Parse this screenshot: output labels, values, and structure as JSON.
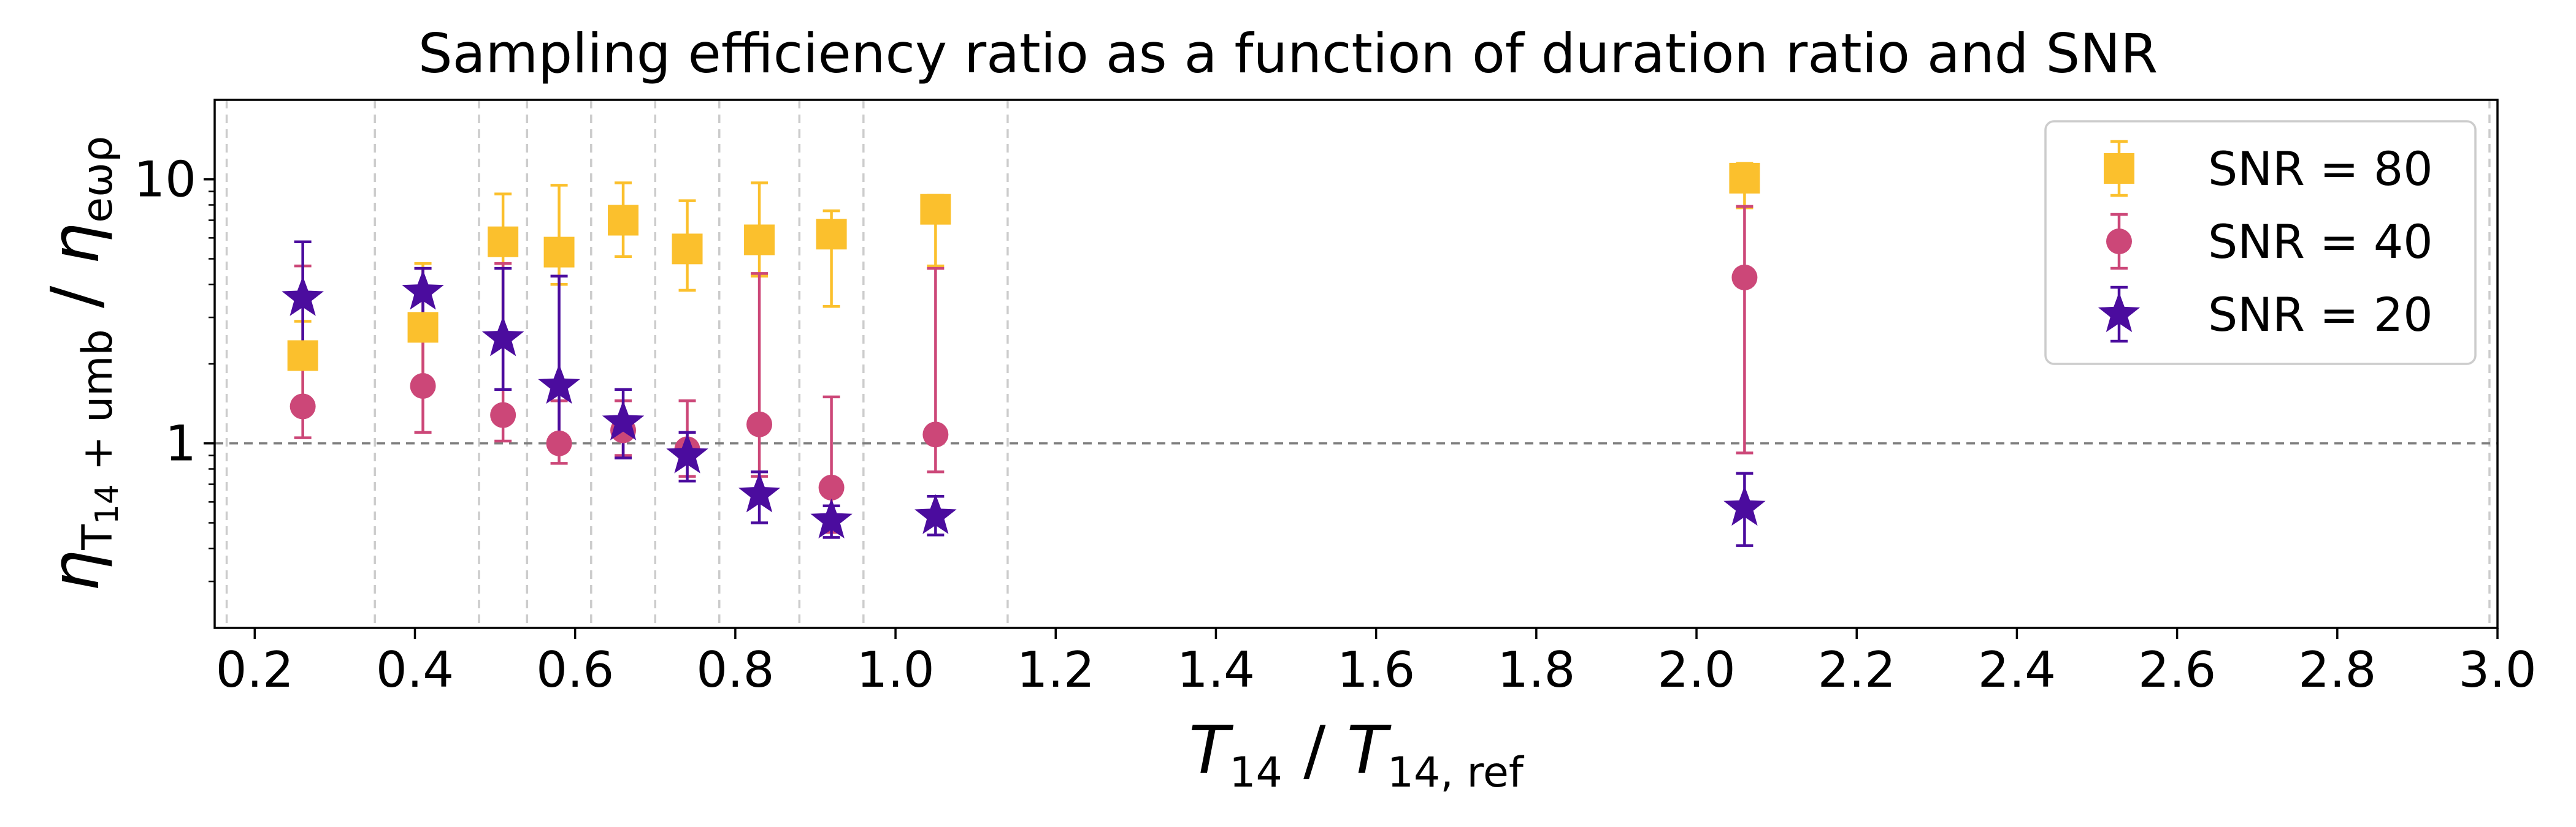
{
  "chart_data": {
    "type": "scatter",
    "title": "Sampling efficiency ratio as a function of duration ratio and SNR",
    "xlabel": {
      "main": "T",
      "sub": "14",
      "sep": " / ",
      "main2": "T",
      "sub2": "14, ref"
    },
    "ylabel": {
      "main": "η",
      "sub": "T",
      "subsub": "14",
      "sub_rest": " + umb",
      "sep": " / ",
      "main2": "η",
      "sub2": "eωρ"
    },
    "xlim": [
      0.15,
      3.0
    ],
    "ylim": [
      0.2,
      20
    ],
    "yscale": "log",
    "x_ticks": [
      0.2,
      0.4,
      0.6,
      0.8,
      1.0,
      1.2,
      1.4,
      1.6,
      1.8,
      2.0,
      2.2,
      2.4,
      2.6,
      2.8,
      3.0
    ],
    "x_tick_labels": [
      "0.2",
      "0.4",
      "0.6",
      "0.8",
      "1.0",
      "1.2",
      "1.4",
      "1.6",
      "1.8",
      "2.0",
      "2.2",
      "2.4",
      "2.6",
      "2.8",
      "3.0"
    ],
    "y_ticks": [
      1,
      10
    ],
    "y_tick_labels": [
      "1",
      "10"
    ],
    "vlines": [
      0.165,
      0.35,
      0.48,
      0.54,
      0.62,
      0.7,
      0.78,
      0.88,
      0.96,
      1.14,
      2.99
    ],
    "hline": 1,
    "legend_position": "top-right",
    "series": [
      {
        "name": "SNR = 80",
        "marker": "square",
        "color": "#FBC02D",
        "points": [
          {
            "x": 0.26,
            "y": 2.15,
            "lo": 1.4,
            "hi": 2.9
          },
          {
            "x": 0.41,
            "y": 2.75,
            "lo": 1.7,
            "hi": 4.8
          },
          {
            "x": 0.51,
            "y": 5.8,
            "lo": 2.4,
            "hi": 8.8
          },
          {
            "x": 0.58,
            "y": 5.3,
            "lo": 4.0,
            "hi": 9.5
          },
          {
            "x": 0.66,
            "y": 7.0,
            "lo": 5.1,
            "hi": 9.7
          },
          {
            "x": 0.74,
            "y": 5.45,
            "lo": 3.8,
            "hi": 8.3
          },
          {
            "x": 0.83,
            "y": 5.9,
            "lo": 4.3,
            "hi": 9.7
          },
          {
            "x": 0.92,
            "y": 6.2,
            "lo": 3.3,
            "hi": 7.6
          },
          {
            "x": 1.05,
            "y": 7.7,
            "lo": 4.7,
            "hi": 8.7
          },
          {
            "x": 2.06,
            "y": 10.1,
            "lo": 7.8,
            "hi": 11.5
          }
        ]
      },
      {
        "name": "SNR = 40",
        "marker": "circle",
        "color": "#CC4778",
        "points": [
          {
            "x": 0.26,
            "y": 1.38,
            "lo": 1.05,
            "hi": 4.7
          },
          {
            "x": 0.41,
            "y": 1.65,
            "lo": 1.1,
            "hi": 4.6
          },
          {
            "x": 0.51,
            "y": 1.28,
            "lo": 1.02,
            "hi": 4.8
          },
          {
            "x": 0.58,
            "y": 1.0,
            "lo": 0.84,
            "hi": 1.45
          },
          {
            "x": 0.66,
            "y": 1.12,
            "lo": 0.9,
            "hi": 1.45
          },
          {
            "x": 0.74,
            "y": 0.95,
            "lo": 0.75,
            "hi": 1.45
          },
          {
            "x": 0.83,
            "y": 1.18,
            "lo": 0.75,
            "hi": 4.4
          },
          {
            "x": 0.92,
            "y": 0.68,
            "lo": 0.46,
            "hi": 1.5
          },
          {
            "x": 1.05,
            "y": 1.08,
            "lo": 0.78,
            "hi": 4.6
          },
          {
            "x": 2.06,
            "y": 4.25,
            "lo": 0.92,
            "hi": 7.9
          }
        ]
      },
      {
        "name": "SNR = 20",
        "marker": "star",
        "color": "#4B0C9E",
        "points": [
          {
            "x": 0.26,
            "y": 3.55,
            "lo": 2.2,
            "hi": 5.8
          },
          {
            "x": 0.41,
            "y": 3.75,
            "lo": 2.7,
            "hi": 4.6
          },
          {
            "x": 0.51,
            "y": 2.5,
            "lo": 1.6,
            "hi": 4.6
          },
          {
            "x": 0.58,
            "y": 1.65,
            "lo": 1.0,
            "hi": 4.3
          },
          {
            "x": 0.66,
            "y": 1.2,
            "lo": 0.88,
            "hi": 1.6
          },
          {
            "x": 0.74,
            "y": 0.9,
            "lo": 0.72,
            "hi": 1.1
          },
          {
            "x": 0.83,
            "y": 0.64,
            "lo": 0.5,
            "hi": 0.78
          },
          {
            "x": 0.92,
            "y": 0.51,
            "lo": 0.44,
            "hi": 0.58
          },
          {
            "x": 1.05,
            "y": 0.53,
            "lo": 0.45,
            "hi": 0.63
          },
          {
            "x": 2.06,
            "y": 0.57,
            "lo": 0.41,
            "hi": 0.77
          }
        ]
      }
    ]
  }
}
